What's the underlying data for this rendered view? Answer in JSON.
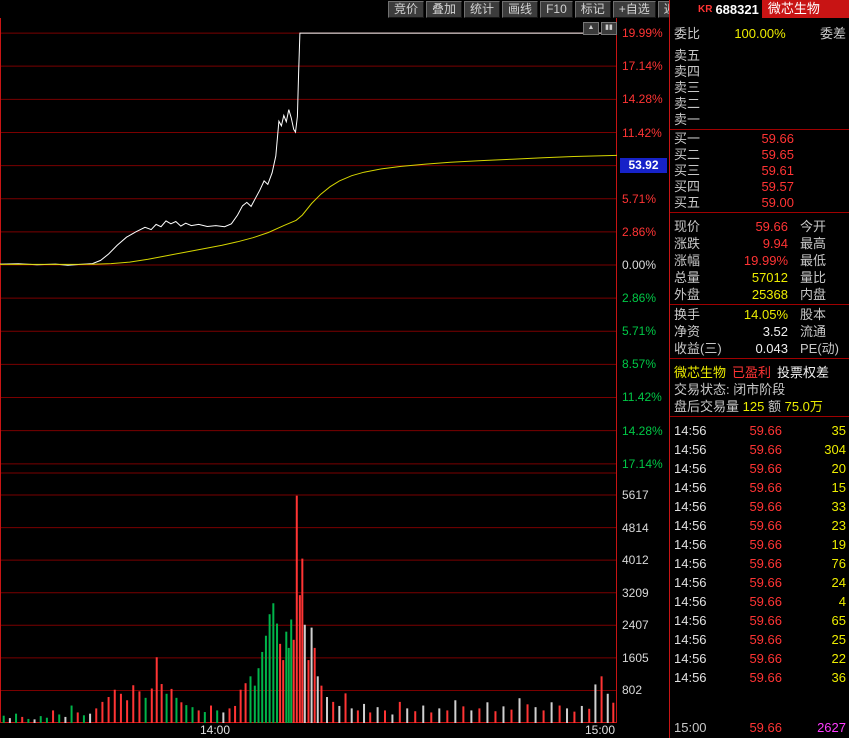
{
  "topbar": {
    "buttons": [
      "竞价",
      "叠加",
      "统计",
      "画线",
      "F10",
      "标记",
      "+自选",
      "返回"
    ]
  },
  "header": {
    "flag": "KR",
    "code": "688321",
    "name": "微芯生物"
  },
  "icons": {
    "scroll_up": "▲",
    "pane_split": "▮▮"
  },
  "colors": {
    "up": "#ff3434",
    "down": "#00c846",
    "neutral": "#dcdcdc",
    "yellow": "#ecec00",
    "magenta": "#ff3cff",
    "white": "#f0f0f0",
    "grid": "#7a0000",
    "frame": "#c81414",
    "vol_up": "#ff3434",
    "vol_down": "#00b44a",
    "vol_neutral": "#d0d0d0",
    "avg_tag_bg": "#1622c8",
    "label": "#c8c8c8"
  },
  "chart_data": {
    "type": "line",
    "title": "微芯生物 688321 分时走势",
    "x_axis_labels": [
      "14:00",
      "15:00"
    ],
    "limit_up_pct": 19.99,
    "avg_price_tag": {
      "text": "53.92",
      "pct": 8.57
    },
    "pct_axis": [
      {
        "text": "19.99%",
        "pct": 19.99,
        "color": "up"
      },
      {
        "text": "17.14%",
        "pct": 17.14,
        "color": "up"
      },
      {
        "text": "14.28%",
        "pct": 14.28,
        "color": "up"
      },
      {
        "text": "11.42%",
        "pct": 11.42,
        "color": "up"
      },
      {
        "text": "8.57%",
        "pct": 8.57,
        "color": "up"
      },
      {
        "text": "5.71%",
        "pct": 5.71,
        "color": "up"
      },
      {
        "text": "2.86%",
        "pct": 2.86,
        "color": "up"
      },
      {
        "text": "0.00%",
        "pct": 0,
        "color": "neutral"
      },
      {
        "text": "2.86%",
        "pct": -2.86,
        "color": "down"
      },
      {
        "text": "5.71%",
        "pct": -5.71,
        "color": "down"
      },
      {
        "text": "8.57%",
        "pct": -8.57,
        "color": "down"
      },
      {
        "text": "11.42%",
        "pct": -11.42,
        "color": "down"
      },
      {
        "text": "14.28%",
        "pct": -14.28,
        "color": "down"
      },
      {
        "text": "17.14%",
        "pct": -17.14,
        "color": "down"
      }
    ],
    "volume_axis": [
      5617,
      4814,
      4012,
      3209,
      2407,
      1605,
      802
    ],
    "series": [
      {
        "name": "price_pct",
        "color": "#ffffff",
        "points": [
          [
            0.0,
            0.08
          ],
          [
            0.03,
            0.1
          ],
          [
            0.06,
            0.03
          ],
          [
            0.09,
            0.08
          ],
          [
            0.11,
            -0.03
          ],
          [
            0.13,
            0.05
          ],
          [
            0.15,
            0.12
          ],
          [
            0.163,
            0.4
          ],
          [
            0.176,
            0.95
          ],
          [
            0.19,
            1.7
          ],
          [
            0.205,
            2.4
          ],
          [
            0.22,
            2.85
          ],
          [
            0.235,
            3.25
          ],
          [
            0.245,
            3.05
          ],
          [
            0.253,
            3.5
          ],
          [
            0.261,
            3.3
          ],
          [
            0.269,
            3.8
          ],
          [
            0.277,
            3.55
          ],
          [
            0.285,
            3.75
          ],
          [
            0.293,
            3.35
          ],
          [
            0.301,
            3.6
          ],
          [
            0.31,
            3.4
          ],
          [
            0.322,
            3.5
          ],
          [
            0.336,
            3.32
          ],
          [
            0.35,
            3.4
          ],
          [
            0.364,
            3.3
          ],
          [
            0.375,
            3.55
          ],
          [
            0.385,
            4.3
          ],
          [
            0.393,
            5.1
          ],
          [
            0.4,
            5.4
          ],
          [
            0.407,
            5.05
          ],
          [
            0.414,
            5.75
          ],
          [
            0.421,
            6.45
          ],
          [
            0.428,
            7.25
          ],
          [
            0.434,
            6.95
          ],
          [
            0.441,
            7.95
          ],
          [
            0.447,
            9.4
          ],
          [
            0.452,
            12.4
          ],
          [
            0.456,
            12.0
          ],
          [
            0.46,
            12.9
          ],
          [
            0.464,
            12.35
          ],
          [
            0.468,
            13.4
          ],
          [
            0.472,
            12.7
          ],
          [
            0.476,
            11.7
          ],
          [
            0.479,
            11.45
          ],
          [
            0.482,
            12.8
          ],
          [
            0.484,
            16.5
          ],
          [
            0.486,
            19.99
          ],
          [
            1.0,
            19.99
          ]
        ]
      },
      {
        "name": "avg_pct",
        "color": "#d6d600",
        "points": [
          [
            0.0,
            0.05
          ],
          [
            0.1,
            0.05
          ],
          [
            0.15,
            0.07
          ],
          [
            0.18,
            0.12
          ],
          [
            0.21,
            0.25
          ],
          [
            0.24,
            0.5
          ],
          [
            0.27,
            0.8
          ],
          [
            0.3,
            1.1
          ],
          [
            0.33,
            1.4
          ],
          [
            0.36,
            1.7
          ],
          [
            0.385,
            2.0
          ],
          [
            0.41,
            2.35
          ],
          [
            0.435,
            2.8
          ],
          [
            0.46,
            3.4
          ],
          [
            0.48,
            3.85
          ],
          [
            0.49,
            4.3
          ],
          [
            0.505,
            5.3
          ],
          [
            0.52,
            6.1
          ],
          [
            0.535,
            6.75
          ],
          [
            0.55,
            7.25
          ],
          [
            0.57,
            7.7
          ],
          [
            0.59,
            8.0
          ],
          [
            0.62,
            8.3
          ],
          [
            0.65,
            8.5
          ],
          [
            0.69,
            8.7
          ],
          [
            0.73,
            8.85
          ],
          [
            0.78,
            9.0
          ],
          [
            0.83,
            9.12
          ],
          [
            0.88,
            9.25
          ],
          [
            0.93,
            9.35
          ],
          [
            1.0,
            9.45
          ]
        ]
      }
    ],
    "volume_bars": [
      [
        0.006,
        180,
        "g"
      ],
      [
        0.016,
        120,
        "w"
      ],
      [
        0.026,
        230,
        "g"
      ],
      [
        0.036,
        150,
        "r"
      ],
      [
        0.046,
        100,
        "g"
      ],
      [
        0.056,
        90,
        "w"
      ],
      [
        0.066,
        170,
        "g"
      ],
      [
        0.076,
        130,
        "g"
      ],
      [
        0.086,
        310,
        "r"
      ],
      [
        0.096,
        210,
        "g"
      ],
      [
        0.106,
        150,
        "w"
      ],
      [
        0.116,
        430,
        "g"
      ],
      [
        0.126,
        260,
        "r"
      ],
      [
        0.136,
        190,
        "g"
      ],
      [
        0.146,
        230,
        "w"
      ],
      [
        0.156,
        360,
        "r"
      ],
      [
        0.166,
        520,
        "r"
      ],
      [
        0.176,
        640,
        "r"
      ],
      [
        0.186,
        820,
        "r"
      ],
      [
        0.196,
        720,
        "r"
      ],
      [
        0.206,
        560,
        "r"
      ],
      [
        0.216,
        930,
        "r"
      ],
      [
        0.226,
        780,
        "r"
      ],
      [
        0.236,
        620,
        "g"
      ],
      [
        0.246,
        850,
        "r"
      ],
      [
        0.254,
        1620,
        "r"
      ],
      [
        0.262,
        960,
        "r"
      ],
      [
        0.27,
        720,
        "g"
      ],
      [
        0.278,
        840,
        "r"
      ],
      [
        0.286,
        620,
        "g"
      ],
      [
        0.294,
        510,
        "r"
      ],
      [
        0.302,
        440,
        "g"
      ],
      [
        0.312,
        390,
        "g"
      ],
      [
        0.322,
        310,
        "r"
      ],
      [
        0.332,
        270,
        "g"
      ],
      [
        0.342,
        430,
        "r"
      ],
      [
        0.352,
        310,
        "g"
      ],
      [
        0.362,
        260,
        "w"
      ],
      [
        0.372,
        360,
        "r"
      ],
      [
        0.381,
        420,
        "r"
      ],
      [
        0.39,
        820,
        "r"
      ],
      [
        0.398,
        980,
        "r"
      ],
      [
        0.406,
        1150,
        "g"
      ],
      [
        0.413,
        920,
        "g"
      ],
      [
        0.419,
        1350,
        "g"
      ],
      [
        0.425,
        1750,
        "g"
      ],
      [
        0.431,
        2150,
        "g"
      ],
      [
        0.437,
        2680,
        "g"
      ],
      [
        0.443,
        2950,
        "g"
      ],
      [
        0.449,
        2450,
        "g"
      ],
      [
        0.454,
        1950,
        "r"
      ],
      [
        0.459,
        1550,
        "r"
      ],
      [
        0.464,
        2250,
        "g"
      ],
      [
        0.468,
        1850,
        "g"
      ],
      [
        0.472,
        2550,
        "g"
      ],
      [
        0.476,
        2050,
        "r"
      ],
      [
        0.481,
        5600,
        "r"
      ],
      [
        0.486,
        3150,
        "r"
      ],
      [
        0.49,
        4050,
        "r"
      ],
      [
        0.494,
        2420,
        "w"
      ],
      [
        0.5,
        1550,
        "r"
      ],
      [
        0.505,
        2350,
        "w"
      ],
      [
        0.51,
        1850,
        "r"
      ],
      [
        0.515,
        1150,
        "w"
      ],
      [
        0.521,
        920,
        "r"
      ],
      [
        0.53,
        640,
        "w"
      ],
      [
        0.54,
        520,
        "r"
      ],
      [
        0.55,
        420,
        "w"
      ],
      [
        0.56,
        730,
        "r"
      ],
      [
        0.57,
        360,
        "w"
      ],
      [
        0.58,
        310,
        "r"
      ],
      [
        0.59,
        470,
        "w"
      ],
      [
        0.6,
        260,
        "r"
      ],
      [
        0.612,
        390,
        "w"
      ],
      [
        0.624,
        310,
        "r"
      ],
      [
        0.636,
        210,
        "w"
      ],
      [
        0.648,
        520,
        "r"
      ],
      [
        0.66,
        360,
        "w"
      ],
      [
        0.673,
        290,
        "r"
      ],
      [
        0.686,
        430,
        "w"
      ],
      [
        0.699,
        260,
        "r"
      ],
      [
        0.712,
        360,
        "w"
      ],
      [
        0.725,
        310,
        "r"
      ],
      [
        0.738,
        560,
        "w"
      ],
      [
        0.751,
        410,
        "r"
      ],
      [
        0.764,
        310,
        "w"
      ],
      [
        0.777,
        360,
        "r"
      ],
      [
        0.79,
        510,
        "w"
      ],
      [
        0.803,
        290,
        "r"
      ],
      [
        0.816,
        410,
        "w"
      ],
      [
        0.829,
        330,
        "r"
      ],
      [
        0.842,
        610,
        "w"
      ],
      [
        0.855,
        460,
        "r"
      ],
      [
        0.868,
        390,
        "w"
      ],
      [
        0.881,
        310,
        "r"
      ],
      [
        0.894,
        510,
        "w"
      ],
      [
        0.907,
        430,
        "r"
      ],
      [
        0.919,
        360,
        "w"
      ],
      [
        0.931,
        280,
        "r"
      ],
      [
        0.943,
        420,
        "w"
      ],
      [
        0.955,
        350,
        "r"
      ],
      [
        0.965,
        950,
        "w"
      ],
      [
        0.975,
        1150,
        "r"
      ],
      [
        0.985,
        720,
        "w"
      ],
      [
        0.994,
        500,
        "r"
      ]
    ]
  },
  "panel": {
    "weibi_label": "委比",
    "weibi_value": "100.00%",
    "weicha_label": "委差",
    "sell_rows": [
      {
        "label": "卖五",
        "price": ""
      },
      {
        "label": "卖四",
        "price": ""
      },
      {
        "label": "卖三",
        "price": ""
      },
      {
        "label": "卖二",
        "price": ""
      },
      {
        "label": "卖一",
        "price": ""
      }
    ],
    "buy_rows": [
      {
        "label": "买一",
        "price": "59.66"
      },
      {
        "label": "买二",
        "price": "59.65"
      },
      {
        "label": "买三",
        "price": "59.61"
      },
      {
        "label": "买四",
        "price": "59.57"
      },
      {
        "label": "买五",
        "price": "59.00"
      }
    ],
    "info_rows": [
      {
        "label": "现价",
        "value": "59.66",
        "value_color": "up",
        "label2": "今开"
      },
      {
        "label": "涨跌",
        "value": "9.94",
        "value_color": "up",
        "label2": "最高"
      },
      {
        "label": "涨幅",
        "value": "19.99%",
        "value_color": "up",
        "label2": "最低"
      },
      {
        "label": "总量",
        "value": "57012",
        "value_color": "yellow",
        "label2": "量比"
      },
      {
        "label": "外盘",
        "value": "25368",
        "value_color": "yellow",
        "label2": "内盘"
      }
    ],
    "info2_rows": [
      {
        "label": "换手",
        "value": "14.05%",
        "value_color": "yellow",
        "label2": "股本"
      },
      {
        "label": "净资",
        "value": "3.52",
        "value_color": "white",
        "label2": "流通"
      },
      {
        "label": "收益(三)",
        "value": "0.043",
        "value_color": "white",
        "label2": "PE(动)"
      }
    ],
    "status_line1": [
      "微芯生物",
      "已盈利",
      "投票权差"
    ],
    "status_line2": "交易状态: 闭市阶段",
    "after_hours": {
      "label": "盘后交易量",
      "vol": "125",
      "label2": "额",
      "amt": "75.0万"
    },
    "ticks": [
      {
        "time": "14:56",
        "price": "59.66",
        "vol": "35"
      },
      {
        "time": "14:56",
        "price": "59.66",
        "vol": "304"
      },
      {
        "time": "14:56",
        "price": "59.66",
        "vol": "20"
      },
      {
        "time": "14:56",
        "price": "59.66",
        "vol": "15"
      },
      {
        "time": "14:56",
        "price": "59.66",
        "vol": "33"
      },
      {
        "time": "14:56",
        "price": "59.66",
        "vol": "23"
      },
      {
        "time": "14:56",
        "price": "59.66",
        "vol": "19"
      },
      {
        "time": "14:56",
        "price": "59.66",
        "vol": "76"
      },
      {
        "time": "14:56",
        "price": "59.66",
        "vol": "24"
      },
      {
        "time": "14:56",
        "price": "59.66",
        "vol": "4"
      },
      {
        "time": "14:56",
        "price": "59.66",
        "vol": "65"
      },
      {
        "time": "14:56",
        "price": "59.66",
        "vol": "25"
      },
      {
        "time": "14:56",
        "price": "59.66",
        "vol": "22"
      },
      {
        "time": "14:56",
        "price": "59.66",
        "vol": "36"
      }
    ],
    "last_tick": {
      "time": "15:00",
      "price": "59.66",
      "vol": "2627"
    }
  }
}
